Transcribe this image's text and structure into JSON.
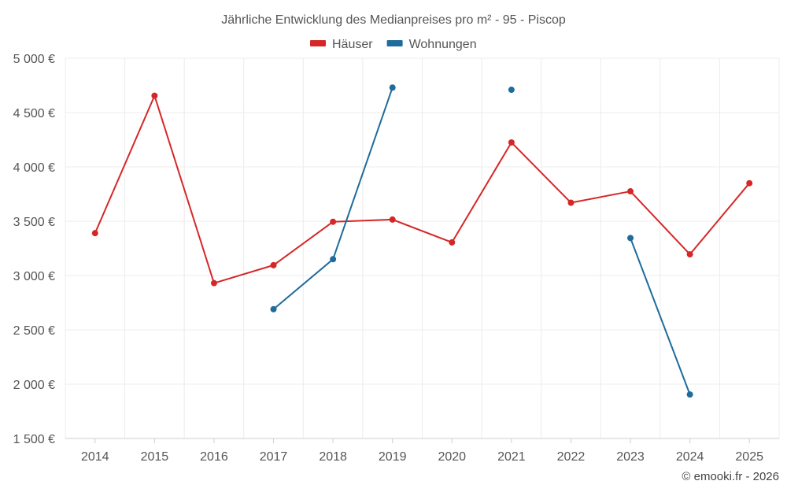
{
  "chart_data": {
    "type": "line",
    "title": "Jährliche Entwicklung des Medianpreises pro m² - 95 - Piscop",
    "categories": [
      "2014",
      "2015",
      "2016",
      "2017",
      "2018",
      "2019",
      "2020",
      "2021",
      "2022",
      "2023",
      "2024",
      "2025"
    ],
    "series": [
      {
        "name": "Häuser",
        "color": "#d62728",
        "values": [
          3390,
          4655,
          2930,
          3095,
          3495,
          3515,
          3305,
          4225,
          3670,
          3775,
          3195,
          3850
        ]
      },
      {
        "name": "Wohnungen",
        "color": "#1f6b9c",
        "values": [
          null,
          null,
          null,
          2690,
          3150,
          4730,
          null,
          4710,
          null,
          3345,
          1905,
          null
        ]
      }
    ],
    "ylim": [
      1500,
      5000
    ],
    "yticks": [
      1500,
      2000,
      2500,
      3000,
      3500,
      4000,
      4500,
      5000
    ],
    "ytick_labels": [
      "1 500 €",
      "2 000 €",
      "2 500 €",
      "3 000 €",
      "3 500 €",
      "4 000 €",
      "4 500 €",
      "5 000 €"
    ],
    "xlabel": "",
    "ylabel": "",
    "grid": true,
    "legend_position": "top-center",
    "credit": "© emooki.fr - 2026"
  }
}
